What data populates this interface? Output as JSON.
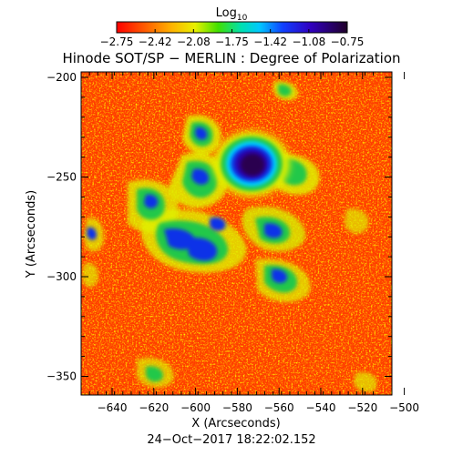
{
  "title": "Hinode SOT/SP − MERLIN : Degree of Polarization",
  "colorbar": {
    "label_base": "Log",
    "label_sub": "10",
    "ticks": [
      "−2.75",
      "−2.42",
      "−2.08",
      "−1.75",
      "−1.42",
      "−1.08",
      "−0.75"
    ]
  },
  "axes": {
    "xlabel": "X (Arcseconds)",
    "ylabel": "Y (Arcseconds)",
    "xticks": [
      "−640",
      "−620",
      "−600",
      "−580",
      "−560",
      "−540",
      "−520",
      "−500"
    ],
    "yticks": [
      "−200",
      "−250",
      "−300",
      "−350"
    ]
  },
  "timestamp": "24−Oct−2017 18:22:02.152",
  "colors": {
    "background": "#ff3000",
    "field": "#ff6a00",
    "speckle": "#ffb000",
    "yellow": "#d8f000",
    "green": "#22c84a",
    "cyan": "#00d8ff",
    "blue": "#1030e8",
    "deep_blue": "#2a00a8",
    "purple": "#2c0050"
  }
}
